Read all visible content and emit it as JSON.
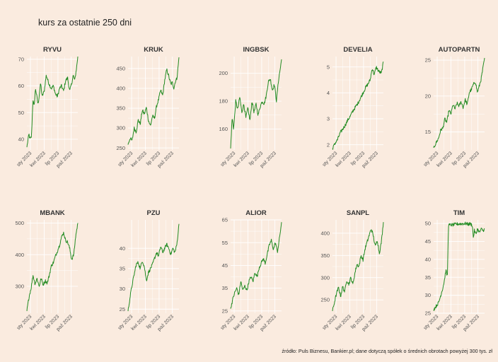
{
  "title": "kurs za ostatnie 250 dni",
  "source": "źródło: Puls Biznesu, Bankier.pl; dane dotyczą spółek o średnich obrotach powyżej 300 tys. zł",
  "colors": {
    "background": "#faebdf",
    "line": "#228b22",
    "grid": "#ffffff"
  },
  "chart_data": [
    {
      "type": "line",
      "title": "RYVU",
      "yticks": [
        40,
        50,
        60,
        70
      ],
      "ylim": [
        36,
        71
      ],
      "xticks": [
        "sty 2023",
        "kwi 2023",
        "lip 2023",
        "paź 2023"
      ],
      "anchors": [
        [
          0,
          37
        ],
        [
          0.04,
          42
        ],
        [
          0.06,
          40
        ],
        [
          0.09,
          41
        ],
        [
          0.12,
          55
        ],
        [
          0.14,
          52
        ],
        [
          0.17,
          59
        ],
        [
          0.22,
          53
        ],
        [
          0.27,
          61
        ],
        [
          0.3,
          56
        ],
        [
          0.34,
          58
        ],
        [
          0.38,
          64
        ],
        [
          0.43,
          61
        ],
        [
          0.48,
          59
        ],
        [
          0.52,
          60
        ],
        [
          0.56,
          57
        ],
        [
          0.6,
          56
        ],
        [
          0.64,
          59
        ],
        [
          0.68,
          60
        ],
        [
          0.72,
          58
        ],
        [
          0.76,
          62
        ],
        [
          0.8,
          63
        ],
        [
          0.84,
          58
        ],
        [
          0.88,
          61
        ],
        [
          0.91,
          64
        ],
        [
          0.94,
          62
        ],
        [
          0.97,
          66
        ],
        [
          1,
          71
        ]
      ]
    },
    {
      "type": "line",
      "title": "KRUK",
      "yticks": [
        250,
        300,
        350,
        400,
        450
      ],
      "ylim": [
        245,
        480
      ],
      "xticks": [
        "sty 2023",
        "kwi 2023",
        "lip 2023",
        "paź 2023"
      ],
      "anchors": [
        [
          0,
          258
        ],
        [
          0.04,
          275
        ],
        [
          0.08,
          268
        ],
        [
          0.12,
          300
        ],
        [
          0.16,
          290
        ],
        [
          0.2,
          320
        ],
        [
          0.24,
          310
        ],
        [
          0.28,
          345
        ],
        [
          0.32,
          335
        ],
        [
          0.36,
          352
        ],
        [
          0.4,
          320
        ],
        [
          0.44,
          305
        ],
        [
          0.48,
          330
        ],
        [
          0.52,
          325
        ],
        [
          0.56,
          355
        ],
        [
          0.6,
          372
        ],
        [
          0.64,
          395
        ],
        [
          0.68,
          382
        ],
        [
          0.72,
          420
        ],
        [
          0.76,
          448
        ],
        [
          0.8,
          430
        ],
        [
          0.84,
          410
        ],
        [
          0.87,
          415
        ],
        [
          0.9,
          400
        ],
        [
          0.93,
          418
        ],
        [
          0.96,
          425
        ],
        [
          1,
          478
        ]
      ]
    },
    {
      "type": "line",
      "title": "INGBSK",
      "yticks": [
        160,
        180,
        200
      ],
      "ylim": [
        145,
        212
      ],
      "xticks": [
        "sty 2023",
        "kwi 2023",
        "lip 2023",
        "paź 2023"
      ],
      "anchors": [
        [
          0,
          146
        ],
        [
          0.03,
          168
        ],
        [
          0.06,
          160
        ],
        [
          0.1,
          180
        ],
        [
          0.14,
          174
        ],
        [
          0.18,
          183
        ],
        [
          0.22,
          172
        ],
        [
          0.26,
          178
        ],
        [
          0.3,
          168
        ],
        [
          0.34,
          175
        ],
        [
          0.38,
          166
        ],
        [
          0.42,
          180
        ],
        [
          0.46,
          172
        ],
        [
          0.5,
          178
        ],
        [
          0.54,
          170
        ],
        [
          0.58,
          176
        ],
        [
          0.62,
          180
        ],
        [
          0.66,
          178
        ],
        [
          0.7,
          184
        ],
        [
          0.74,
          194
        ],
        [
          0.78,
          196
        ],
        [
          0.82,
          188
        ],
        [
          0.86,
          192
        ],
        [
          0.9,
          180
        ],
        [
          0.94,
          195
        ],
        [
          0.97,
          202
        ],
        [
          1,
          210
        ]
      ]
    },
    {
      "type": "line",
      "title": "DEVELIA",
      "yticks": [
        2,
        3,
        4,
        5
      ],
      "ylim": [
        1.8,
        5.4
      ],
      "xticks": [
        "sty 2023",
        "kwi 2023",
        "lip 2023",
        "paź 2023"
      ],
      "anchors": [
        [
          0,
          1.85
        ],
        [
          0.05,
          2.05
        ],
        [
          0.1,
          2.2
        ],
        [
          0.15,
          2.45
        ],
        [
          0.2,
          2.6
        ],
        [
          0.25,
          2.75
        ],
        [
          0.3,
          2.95
        ],
        [
          0.35,
          3.1
        ],
        [
          0.4,
          3.3
        ],
        [
          0.45,
          3.45
        ],
        [
          0.5,
          3.6
        ],
        [
          0.55,
          3.8
        ],
        [
          0.6,
          4.0
        ],
        [
          0.65,
          4.2
        ],
        [
          0.7,
          4.35
        ],
        [
          0.74,
          4.5
        ],
        [
          0.78,
          4.95
        ],
        [
          0.82,
          4.7
        ],
        [
          0.86,
          5.0
        ],
        [
          0.9,
          4.85
        ],
        [
          0.93,
          4.8
        ],
        [
          0.96,
          4.75
        ],
        [
          1,
          5.2
        ]
      ]
    },
    {
      "type": "line",
      "title": "AUTOPARTN",
      "yticks": [
        15,
        20,
        25
      ],
      "ylim": [
        12.5,
        25.5
      ],
      "xticks": [
        "sty 2023",
        "kwi 2023",
        "lip 2023",
        "paź 2023"
      ],
      "anchors": [
        [
          0,
          12.8
        ],
        [
          0.05,
          13.5
        ],
        [
          0.1,
          14.2
        ],
        [
          0.14,
          15.3
        ],
        [
          0.18,
          15.5
        ],
        [
          0.22,
          16.8
        ],
        [
          0.26,
          16.3
        ],
        [
          0.3,
          18.0
        ],
        [
          0.34,
          17.5
        ],
        [
          0.38,
          18.8
        ],
        [
          0.42,
          18.2
        ],
        [
          0.46,
          19.0
        ],
        [
          0.5,
          18.6
        ],
        [
          0.54,
          19.2
        ],
        [
          0.58,
          18.4
        ],
        [
          0.62,
          19.5
        ],
        [
          0.66,
          18.8
        ],
        [
          0.7,
          20.5
        ],
        [
          0.74,
          20.9
        ],
        [
          0.78,
          21.6
        ],
        [
          0.82,
          22.0
        ],
        [
          0.86,
          20.5
        ],
        [
          0.9,
          21.5
        ],
        [
          0.93,
          22.3
        ],
        [
          0.96,
          23.5
        ],
        [
          1,
          25.3
        ]
      ]
    },
    {
      "type": "line",
      "title": "MBANK",
      "yticks": [
        300,
        400,
        500
      ],
      "ylim": [
        215,
        510
      ],
      "xticks": [
        "sty 2023",
        "kwi 2023",
        "lip 2023",
        "paź 2023"
      ],
      "anchors": [
        [
          0,
          222
        ],
        [
          0.04,
          265
        ],
        [
          0.08,
          292
        ],
        [
          0.12,
          335
        ],
        [
          0.16,
          308
        ],
        [
          0.2,
          325
        ],
        [
          0.24,
          300
        ],
        [
          0.28,
          325
        ],
        [
          0.32,
          305
        ],
        [
          0.36,
          318
        ],
        [
          0.4,
          310
        ],
        [
          0.44,
          335
        ],
        [
          0.48,
          365
        ],
        [
          0.52,
          375
        ],
        [
          0.56,
          395
        ],
        [
          0.6,
          412
        ],
        [
          0.64,
          430
        ],
        [
          0.68,
          455
        ],
        [
          0.72,
          470
        ],
        [
          0.76,
          445
        ],
        [
          0.8,
          440
        ],
        [
          0.84,
          420
        ],
        [
          0.88,
          385
        ],
        [
          0.92,
          400
        ],
        [
          0.96,
          460
        ],
        [
          1,
          500
        ]
      ]
    },
    {
      "type": "line",
      "title": "PZU",
      "yticks": [
        25,
        30,
        35,
        40
      ],
      "ylim": [
        24,
        47
      ],
      "xticks": [
        "sty 2023",
        "kwi 2023",
        "lip 2023",
        "paź 2023"
      ],
      "anchors": [
        [
          0,
          24.5
        ],
        [
          0.04,
          28
        ],
        [
          0.08,
          31
        ],
        [
          0.12,
          33.5
        ],
        [
          0.16,
          36
        ],
        [
          0.2,
          36.5
        ],
        [
          0.24,
          35
        ],
        [
          0.28,
          37
        ],
        [
          0.32,
          35.5
        ],
        [
          0.36,
          32
        ],
        [
          0.4,
          34
        ],
        [
          0.44,
          35
        ],
        [
          0.48,
          36
        ],
        [
          0.52,
          37.5
        ],
        [
          0.56,
          39
        ],
        [
          0.6,
          38
        ],
        [
          0.64,
          40.5
        ],
        [
          0.68,
          39
        ],
        [
          0.72,
          40
        ],
        [
          0.76,
          41
        ],
        [
          0.8,
          40
        ],
        [
          0.84,
          38.5
        ],
        [
          0.88,
          40
        ],
        [
          0.92,
          39
        ],
        [
          0.96,
          41
        ],
        [
          1,
          46
        ]
      ]
    },
    {
      "type": "line",
      "title": "ALIOR",
      "yticks": [
        25,
        35,
        45,
        55,
        65
      ],
      "ylim": [
        24,
        65
      ],
      "xticks": [
        "sty 2023",
        "kwi 2023",
        "lip 2023",
        "paź 2023"
      ],
      "anchors": [
        [
          0,
          26
        ],
        [
          0.04,
          30
        ],
        [
          0.08,
          33
        ],
        [
          0.12,
          35
        ],
        [
          0.16,
          32
        ],
        [
          0.2,
          38
        ],
        [
          0.24,
          34
        ],
        [
          0.28,
          36
        ],
        [
          0.32,
          34
        ],
        [
          0.36,
          38
        ],
        [
          0.4,
          40
        ],
        [
          0.44,
          38
        ],
        [
          0.48,
          42
        ],
        [
          0.52,
          40
        ],
        [
          0.56,
          44
        ],
        [
          0.6,
          46
        ],
        [
          0.64,
          48
        ],
        [
          0.68,
          46
        ],
        [
          0.72,
          50
        ],
        [
          0.76,
          54
        ],
        [
          0.8,
          56
        ],
        [
          0.84,
          52
        ],
        [
          0.88,
          55
        ],
        [
          0.92,
          51
        ],
        [
          0.96,
          57
        ],
        [
          1,
          64
        ]
      ]
    },
    {
      "type": "line",
      "title": "SANPL",
      "yticks": [
        250,
        300,
        350,
        400
      ],
      "ylim": [
        220,
        430
      ],
      "xticks": [
        "sty 2023",
        "kwi 2023",
        "lip 2023",
        "paź 2023"
      ],
      "anchors": [
        [
          0,
          225
        ],
        [
          0.04,
          245
        ],
        [
          0.08,
          265
        ],
        [
          0.12,
          278
        ],
        [
          0.16,
          258
        ],
        [
          0.2,
          280
        ],
        [
          0.24,
          268
        ],
        [
          0.28,
          295
        ],
        [
          0.32,
          285
        ],
        [
          0.36,
          300
        ],
        [
          0.4,
          285
        ],
        [
          0.44,
          310
        ],
        [
          0.48,
          330
        ],
        [
          0.52,
          325
        ],
        [
          0.56,
          350
        ],
        [
          0.6,
          340
        ],
        [
          0.64,
          365
        ],
        [
          0.68,
          380
        ],
        [
          0.72,
          395
        ],
        [
          0.76,
          410
        ],
        [
          0.8,
          395
        ],
        [
          0.84,
          370
        ],
        [
          0.88,
          385
        ],
        [
          0.92,
          355
        ],
        [
          0.96,
          380
        ],
        [
          1,
          425
        ]
      ]
    },
    {
      "type": "line",
      "title": "TIM",
      "yticks": [
        25,
        30,
        35,
        40,
        45,
        50
      ],
      "ylim": [
        25,
        51
      ],
      "xticks": [
        "sty 2023",
        "kwi 2023",
        "lip 2023",
        "paź 2023"
      ],
      "anchors": [
        [
          0,
          26
        ],
        [
          0.05,
          27
        ],
        [
          0.1,
          28
        ],
        [
          0.14,
          30
        ],
        [
          0.18,
          32
        ],
        [
          0.21,
          34
        ],
        [
          0.24,
          37
        ],
        [
          0.27,
          35
        ],
        [
          0.29,
          49.5
        ],
        [
          0.33,
          49.6
        ],
        [
          0.38,
          49.6
        ],
        [
          0.44,
          49.8
        ],
        [
          0.5,
          49.9
        ],
        [
          0.56,
          49.9
        ],
        [
          0.62,
          50
        ],
        [
          0.68,
          49.8
        ],
        [
          0.72,
          49.9
        ],
        [
          0.76,
          49.5
        ],
        [
          0.78,
          46
        ],
        [
          0.8,
          48
        ],
        [
          0.83,
          47
        ],
        [
          0.86,
          48.5
        ],
        [
          0.9,
          47.5
        ],
        [
          0.94,
          48.5
        ],
        [
          0.97,
          48
        ],
        [
          1,
          48.5
        ]
      ]
    }
  ]
}
